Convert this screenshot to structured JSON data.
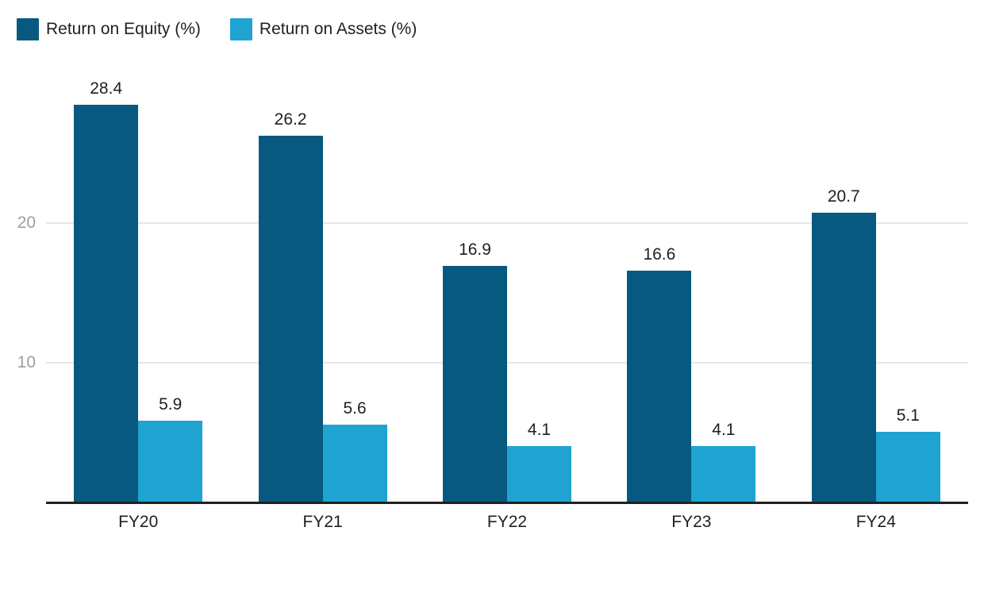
{
  "chart_data": {
    "type": "bar",
    "title": "",
    "xlabel": "",
    "ylabel": "",
    "categories": [
      "FY20",
      "FY21",
      "FY22",
      "FY23",
      "FY24"
    ],
    "series": [
      {
        "name": "Return on Equity (%)",
        "color": "#08597f",
        "values": [
          28.4,
          26.2,
          16.9,
          16.6,
          20.7
        ]
      },
      {
        "name": "Return on Assets (%)",
        "color": "#1fa3d1",
        "values": [
          5.9,
          5.6,
          4.1,
          4.1,
          5.1
        ]
      }
    ],
    "yticks": [
      10,
      20
    ],
    "ylim": [
      0,
      30
    ],
    "grid": true,
    "value_labels": true,
    "legend_position": "top-left"
  },
  "colors": {
    "roe_bar": "#08597f",
    "roa_bar": "#1fa3d1",
    "gridline": "#e6e6e6",
    "axis_line": "#212121",
    "tick_label": "#9e9e9e",
    "text": "#212121",
    "background": "#ffffff"
  }
}
